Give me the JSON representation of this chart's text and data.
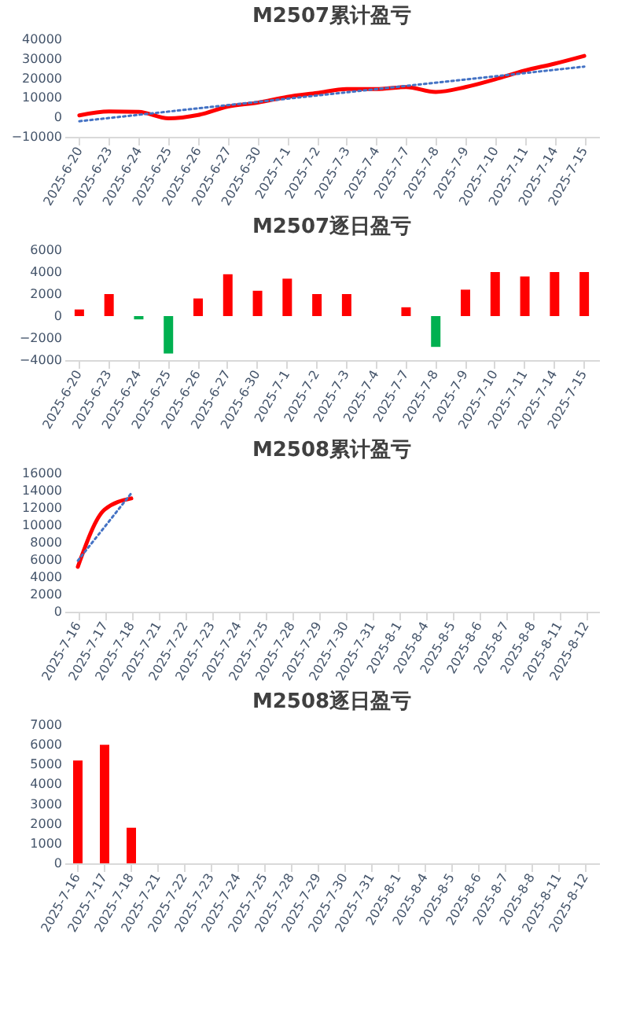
{
  "chart_data": [
    {
      "type": "line",
      "title": "M2507累计盈亏",
      "categories": [
        "2025-6-20",
        "2025-6-23",
        "2025-6-24",
        "2025-6-25",
        "2025-6-26",
        "2025-6-27",
        "2025-6-30",
        "2025-7-1",
        "2025-7-2",
        "2025-7-3",
        "2025-7-4",
        "2025-7-7",
        "2025-7-8",
        "2025-7-9",
        "2025-7-10",
        "2025-7-11",
        "2025-7-14",
        "2025-7-15"
      ],
      "ylim": [
        -10000,
        40000
      ],
      "yticks": [
        -10000,
        0,
        10000,
        20000,
        30000,
        40000
      ],
      "series": [
        {
          "color": "#ff0000",
          "values": [
            1000,
            3000,
            2800,
            -500,
            1200,
            5500,
            7500,
            10500,
            12500,
            14500,
            14500,
            15500,
            13000,
            15500,
            19500,
            24000,
            27500,
            31500
          ]
        },
        {
          "type": "line",
          "line_style": "dotted",
          "color": "#4472c4",
          "x": [
            "2025-6-20",
            "2025-7-15"
          ],
          "values": [
            -2000,
            26000
          ]
        }
      ]
    },
    {
      "type": "bar",
      "title": "M2507逐日盈亏",
      "categories": [
        "2025-6-20",
        "2025-6-23",
        "2025-6-24",
        "2025-6-25",
        "2025-6-26",
        "2025-6-27",
        "2025-6-30",
        "2025-7-1",
        "2025-7-2",
        "2025-7-3",
        "2025-7-4",
        "2025-7-7",
        "2025-7-8",
        "2025-7-9",
        "2025-7-10",
        "2025-7-11",
        "2025-7-14",
        "2025-7-15"
      ],
      "ylim": [
        -4000,
        6000
      ],
      "yticks": [
        -4000,
        -2000,
        0,
        2000,
        4000,
        6000
      ],
      "values": [
        600,
        2000,
        -300,
        -3400,
        1600,
        3800,
        2300,
        3400,
        2000,
        2000,
        0,
        800,
        -2800,
        2400,
        4000,
        3600,
        4000,
        4000
      ],
      "colors": [
        "#ff0000",
        "#ff0000",
        "#00b050",
        "#00b050",
        "#ff0000",
        "#ff0000",
        "#ff0000",
        "#ff0000",
        "#ff0000",
        "#ff0000",
        "#ff0000",
        "#ff0000",
        "#00b050",
        "#ff0000",
        "#ff0000",
        "#ff0000",
        "#ff0000",
        "#ff0000"
      ]
    },
    {
      "type": "line",
      "title": "M2508累计盈亏",
      "categories": [
        "2025-7-16",
        "2025-7-17",
        "2025-7-18",
        "2025-7-21",
        "2025-7-22",
        "2025-7-23",
        "2025-7-24",
        "2025-7-25",
        "2025-7-28",
        "2025-7-29",
        "2025-7-30",
        "2025-7-31",
        "2025-8-1",
        "2025-8-4",
        "2025-8-5",
        "2025-8-6",
        "2025-8-7",
        "2025-8-8",
        "2025-8-11",
        "2025-8-12"
      ],
      "ylim": [
        0,
        16000
      ],
      "yticks": [
        0,
        2000,
        4000,
        6000,
        8000,
        10000,
        12000,
        14000,
        16000
      ],
      "series": [
        {
          "color": "#ff0000",
          "values": [
            5200,
            11800,
            13100,
            null,
            null,
            null,
            null,
            null,
            null,
            null,
            null,
            null,
            null,
            null,
            null,
            null,
            null,
            null,
            null,
            null
          ]
        },
        {
          "type": "line",
          "line_style": "dotted",
          "color": "#4472c4",
          "x": [
            "2025-7-16",
            "2025-7-18"
          ],
          "values": [
            5900,
            13700
          ]
        }
      ]
    },
    {
      "type": "bar",
      "title": "M2508逐日盈亏",
      "categories": [
        "2025-7-16",
        "2025-7-17",
        "2025-7-18",
        "2025-7-21",
        "2025-7-22",
        "2025-7-23",
        "2025-7-24",
        "2025-7-25",
        "2025-7-28",
        "2025-7-29",
        "2025-7-30",
        "2025-7-31",
        "2025-8-1",
        "2025-8-4",
        "2025-8-5",
        "2025-8-6",
        "2025-8-7",
        "2025-8-8",
        "2025-8-11",
        "2025-8-12"
      ],
      "ylim": [
        0,
        7000
      ],
      "yticks": [
        0,
        1000,
        2000,
        3000,
        4000,
        5000,
        6000,
        7000
      ],
      "values": [
        5200,
        6000,
        1800,
        null,
        null,
        null,
        null,
        null,
        null,
        null,
        null,
        null,
        null,
        null,
        null,
        null,
        null,
        null,
        null,
        null
      ],
      "color": "#ff0000"
    }
  ]
}
